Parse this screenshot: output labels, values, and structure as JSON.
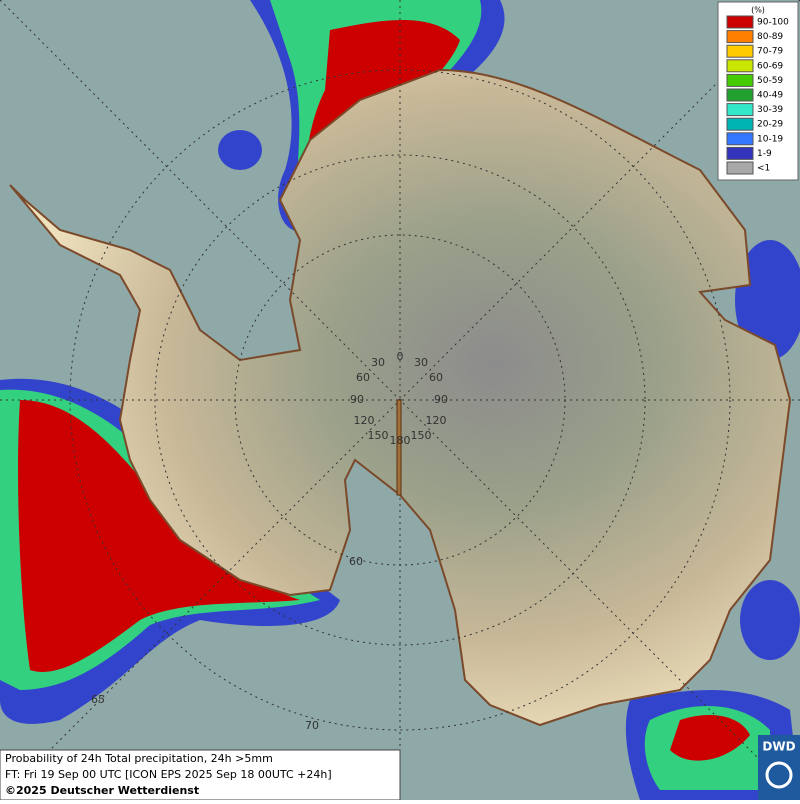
{
  "legend": {
    "title": "(%)",
    "items": [
      {
        "label": "90-100",
        "color": "#cc0000"
      },
      {
        "label": "80-89",
        "color": "#ff7f00"
      },
      {
        "label": "70-79",
        "color": "#ffcc00"
      },
      {
        "label": "60-69",
        "color": "#c8e600"
      },
      {
        "label": "50-59",
        "color": "#44cc00"
      },
      {
        "label": "40-49",
        "color": "#22a030"
      },
      {
        "label": "30-39",
        "color": "#33e8c8"
      },
      {
        "label": "20-29",
        "color": "#00b4b4"
      },
      {
        "label": "10-19",
        "color": "#3377ff"
      },
      {
        "label": "1-9",
        "color": "#3333bb"
      },
      {
        "label": "<1",
        "color": "#a8a8a8"
      }
    ]
  },
  "grid_labels": [
    "0",
    "30",
    "30",
    "60",
    "60",
    "90",
    "90",
    "120",
    "120",
    "150",
    "150",
    "180",
    "60",
    "65",
    "70"
  ],
  "caption": {
    "line1": "Probability of 24h Total precipitation, 24h >5mm",
    "line2": "FT: Fri 19 Sep 00 UTC [ICON EPS 2025 Sep 18 00UTC +24h]",
    "line3": "©2025 Deutscher Wetterdienst"
  },
  "logo": "DWD"
}
